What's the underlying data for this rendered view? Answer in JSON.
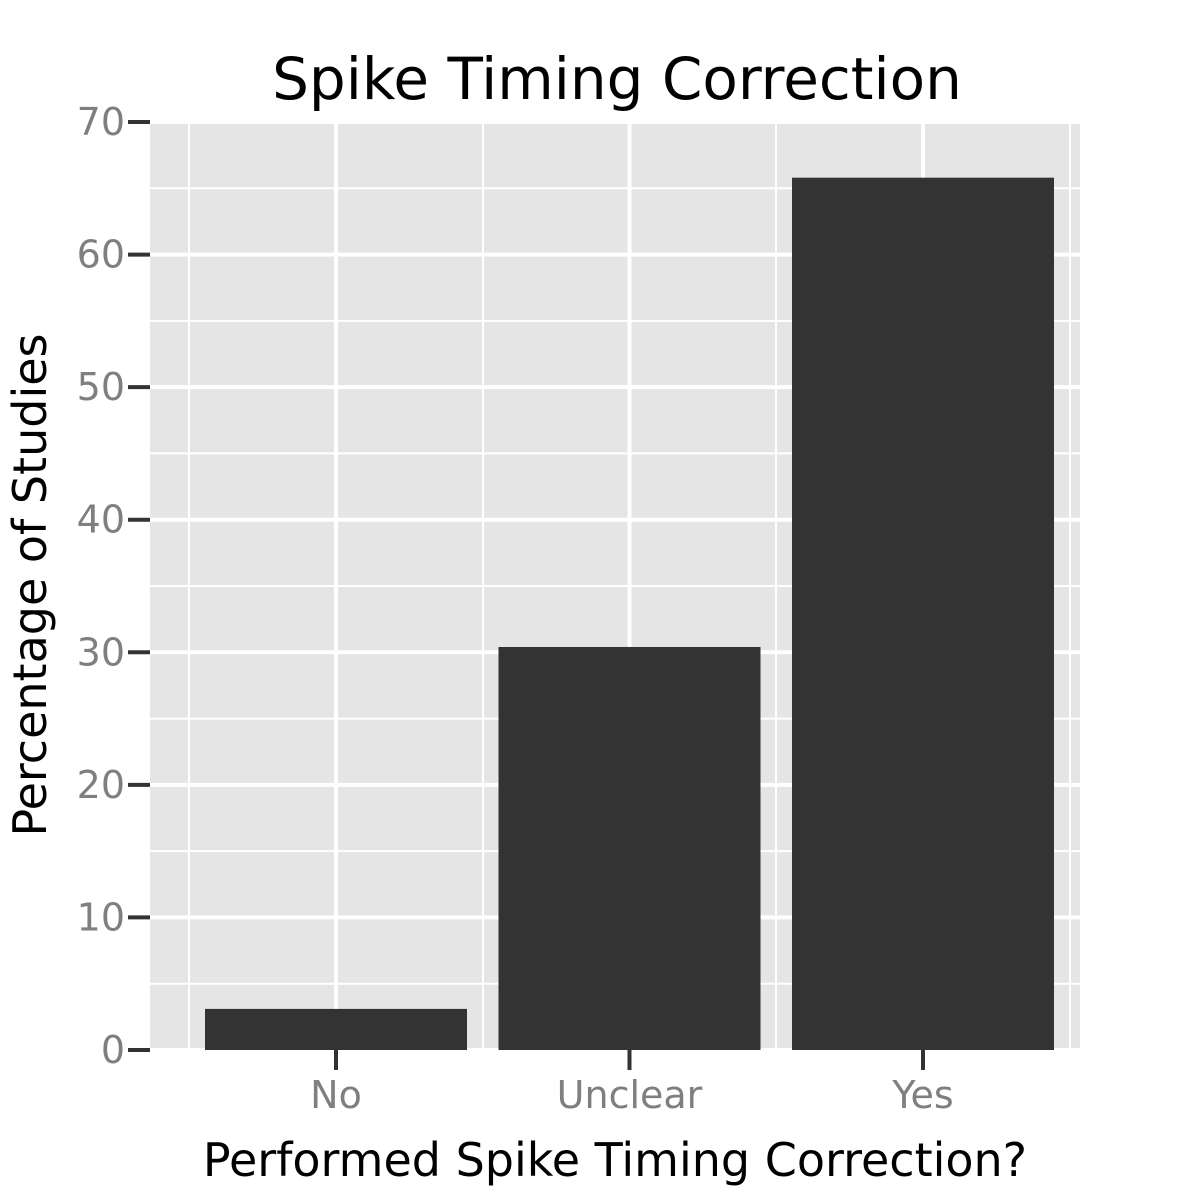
{
  "chart_data": {
    "type": "bar",
    "title": "Spike Timing Correction",
    "xlabel": "Performed Spike Timing Correction?",
    "ylabel": "Percentage of Studies",
    "categories": [
      "No",
      "Unclear",
      "Yes"
    ],
    "values": [
      3.1,
      30.4,
      65.8
    ],
    "ylim": [
      0,
      70
    ],
    "yticks": [
      0,
      10,
      20,
      30,
      40,
      50,
      60,
      70
    ],
    "ytick_labels": [
      "0",
      "10",
      "20",
      "30",
      "40",
      "50",
      "60",
      "70"
    ],
    "grid": true,
    "legend": "none",
    "colors": {
      "bar": "#333333",
      "panel_background": "#e5e5e5",
      "grid": "#ffffff",
      "tick_label": "#7f7f7f",
      "tick_mark": "#333333"
    }
  }
}
